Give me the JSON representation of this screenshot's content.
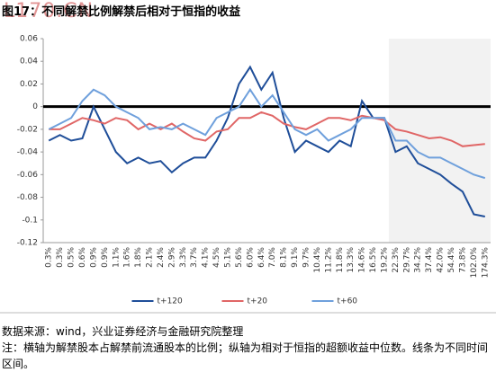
{
  "chart_data": {
    "type": "line",
    "title": "图17：不同解禁比例解禁后相对于恒指的收益",
    "watermark": "L170.CN",
    "source": "数据来源：wind，兴业证券经济与金融研究院整理",
    "note": "注：横轴为解禁股本占解禁前流通股本的比例；纵轴为相对于恒指的超额收益中位数。线条为不同时间区间。",
    "categories": [
      "0.3%",
      "0.3%",
      "0.5%",
      "0.6%",
      "0.9%",
      "0.9%",
      "1.1%",
      "1.6%",
      "1.8%",
      "2.1%",
      "2.4%",
      "2.9%",
      "3.3%",
      "3.7%",
      "4.1%",
      "4.5%",
      "5.1%",
      "5.6%",
      "6.0%",
      "6.4%",
      "7.0%",
      "8.1%",
      "9.1%",
      "9.7%",
      "10.4%",
      "11.2%",
      "11.8%",
      "13.3%",
      "14.6%",
      "16.5%",
      "19.2%",
      "22.3%",
      "29.7%",
      "34.2%",
      "37.4%",
      "42.0%",
      "54.4%",
      "73.8%",
      "102.0%",
      "174.3%"
    ],
    "series": [
      {
        "name": "t+120",
        "color": "#1f4e99",
        "values": [
          -0.03,
          -0.025,
          -0.03,
          -0.028,
          0.0,
          -0.02,
          -0.04,
          -0.05,
          -0.045,
          -0.05,
          -0.048,
          -0.058,
          -0.05,
          -0.045,
          -0.045,
          -0.03,
          -0.01,
          0.02,
          0.035,
          0.015,
          0.03,
          -0.01,
          -0.04,
          -0.03,
          -0.035,
          -0.04,
          -0.03,
          -0.035,
          0.005,
          -0.01,
          -0.01,
          -0.04,
          -0.035,
          -0.05,
          -0.055,
          -0.06,
          -0.068,
          -0.075,
          -0.095,
          -0.097
        ]
      },
      {
        "name": "t+20",
        "color": "#e06666",
        "values": [
          -0.02,
          -0.02,
          -0.015,
          -0.01,
          -0.012,
          -0.015,
          -0.01,
          -0.012,
          -0.02,
          -0.015,
          -0.02,
          -0.015,
          -0.022,
          -0.028,
          -0.03,
          -0.022,
          -0.02,
          -0.01,
          -0.01,
          -0.005,
          -0.008,
          -0.015,
          -0.018,
          -0.02,
          -0.015,
          -0.01,
          -0.01,
          -0.012,
          -0.008,
          -0.01,
          -0.012,
          -0.02,
          -0.022,
          -0.025,
          -0.028,
          -0.027,
          -0.03,
          -0.035,
          -0.034,
          -0.033
        ]
      },
      {
        "name": "t+60",
        "color": "#6fa0dc",
        "values": [
          -0.02,
          -0.015,
          -0.01,
          0.005,
          0.015,
          0.01,
          0.0,
          -0.005,
          -0.01,
          -0.02,
          -0.018,
          -0.02,
          -0.015,
          -0.02,
          -0.025,
          -0.01,
          -0.005,
          0.0,
          0.015,
          0.0,
          0.01,
          -0.005,
          -0.02,
          -0.025,
          -0.02,
          -0.03,
          -0.025,
          -0.02,
          -0.01,
          -0.01,
          -0.01,
          -0.03,
          -0.03,
          -0.04,
          -0.045,
          -0.045,
          -0.05,
          -0.055,
          -0.06,
          -0.063
        ]
      }
    ],
    "ylim": [
      -0.12,
      0.06
    ],
    "yticks": [
      0.06,
      0.04,
      0.02,
      0,
      -0.02,
      -0.04,
      -0.06,
      -0.08,
      -0.1,
      -0.12
    ],
    "reference_line": 0,
    "shaded_range": [
      31,
      39
    ],
    "shade_color": "#f2f2f2",
    "legend": "bottom"
  }
}
